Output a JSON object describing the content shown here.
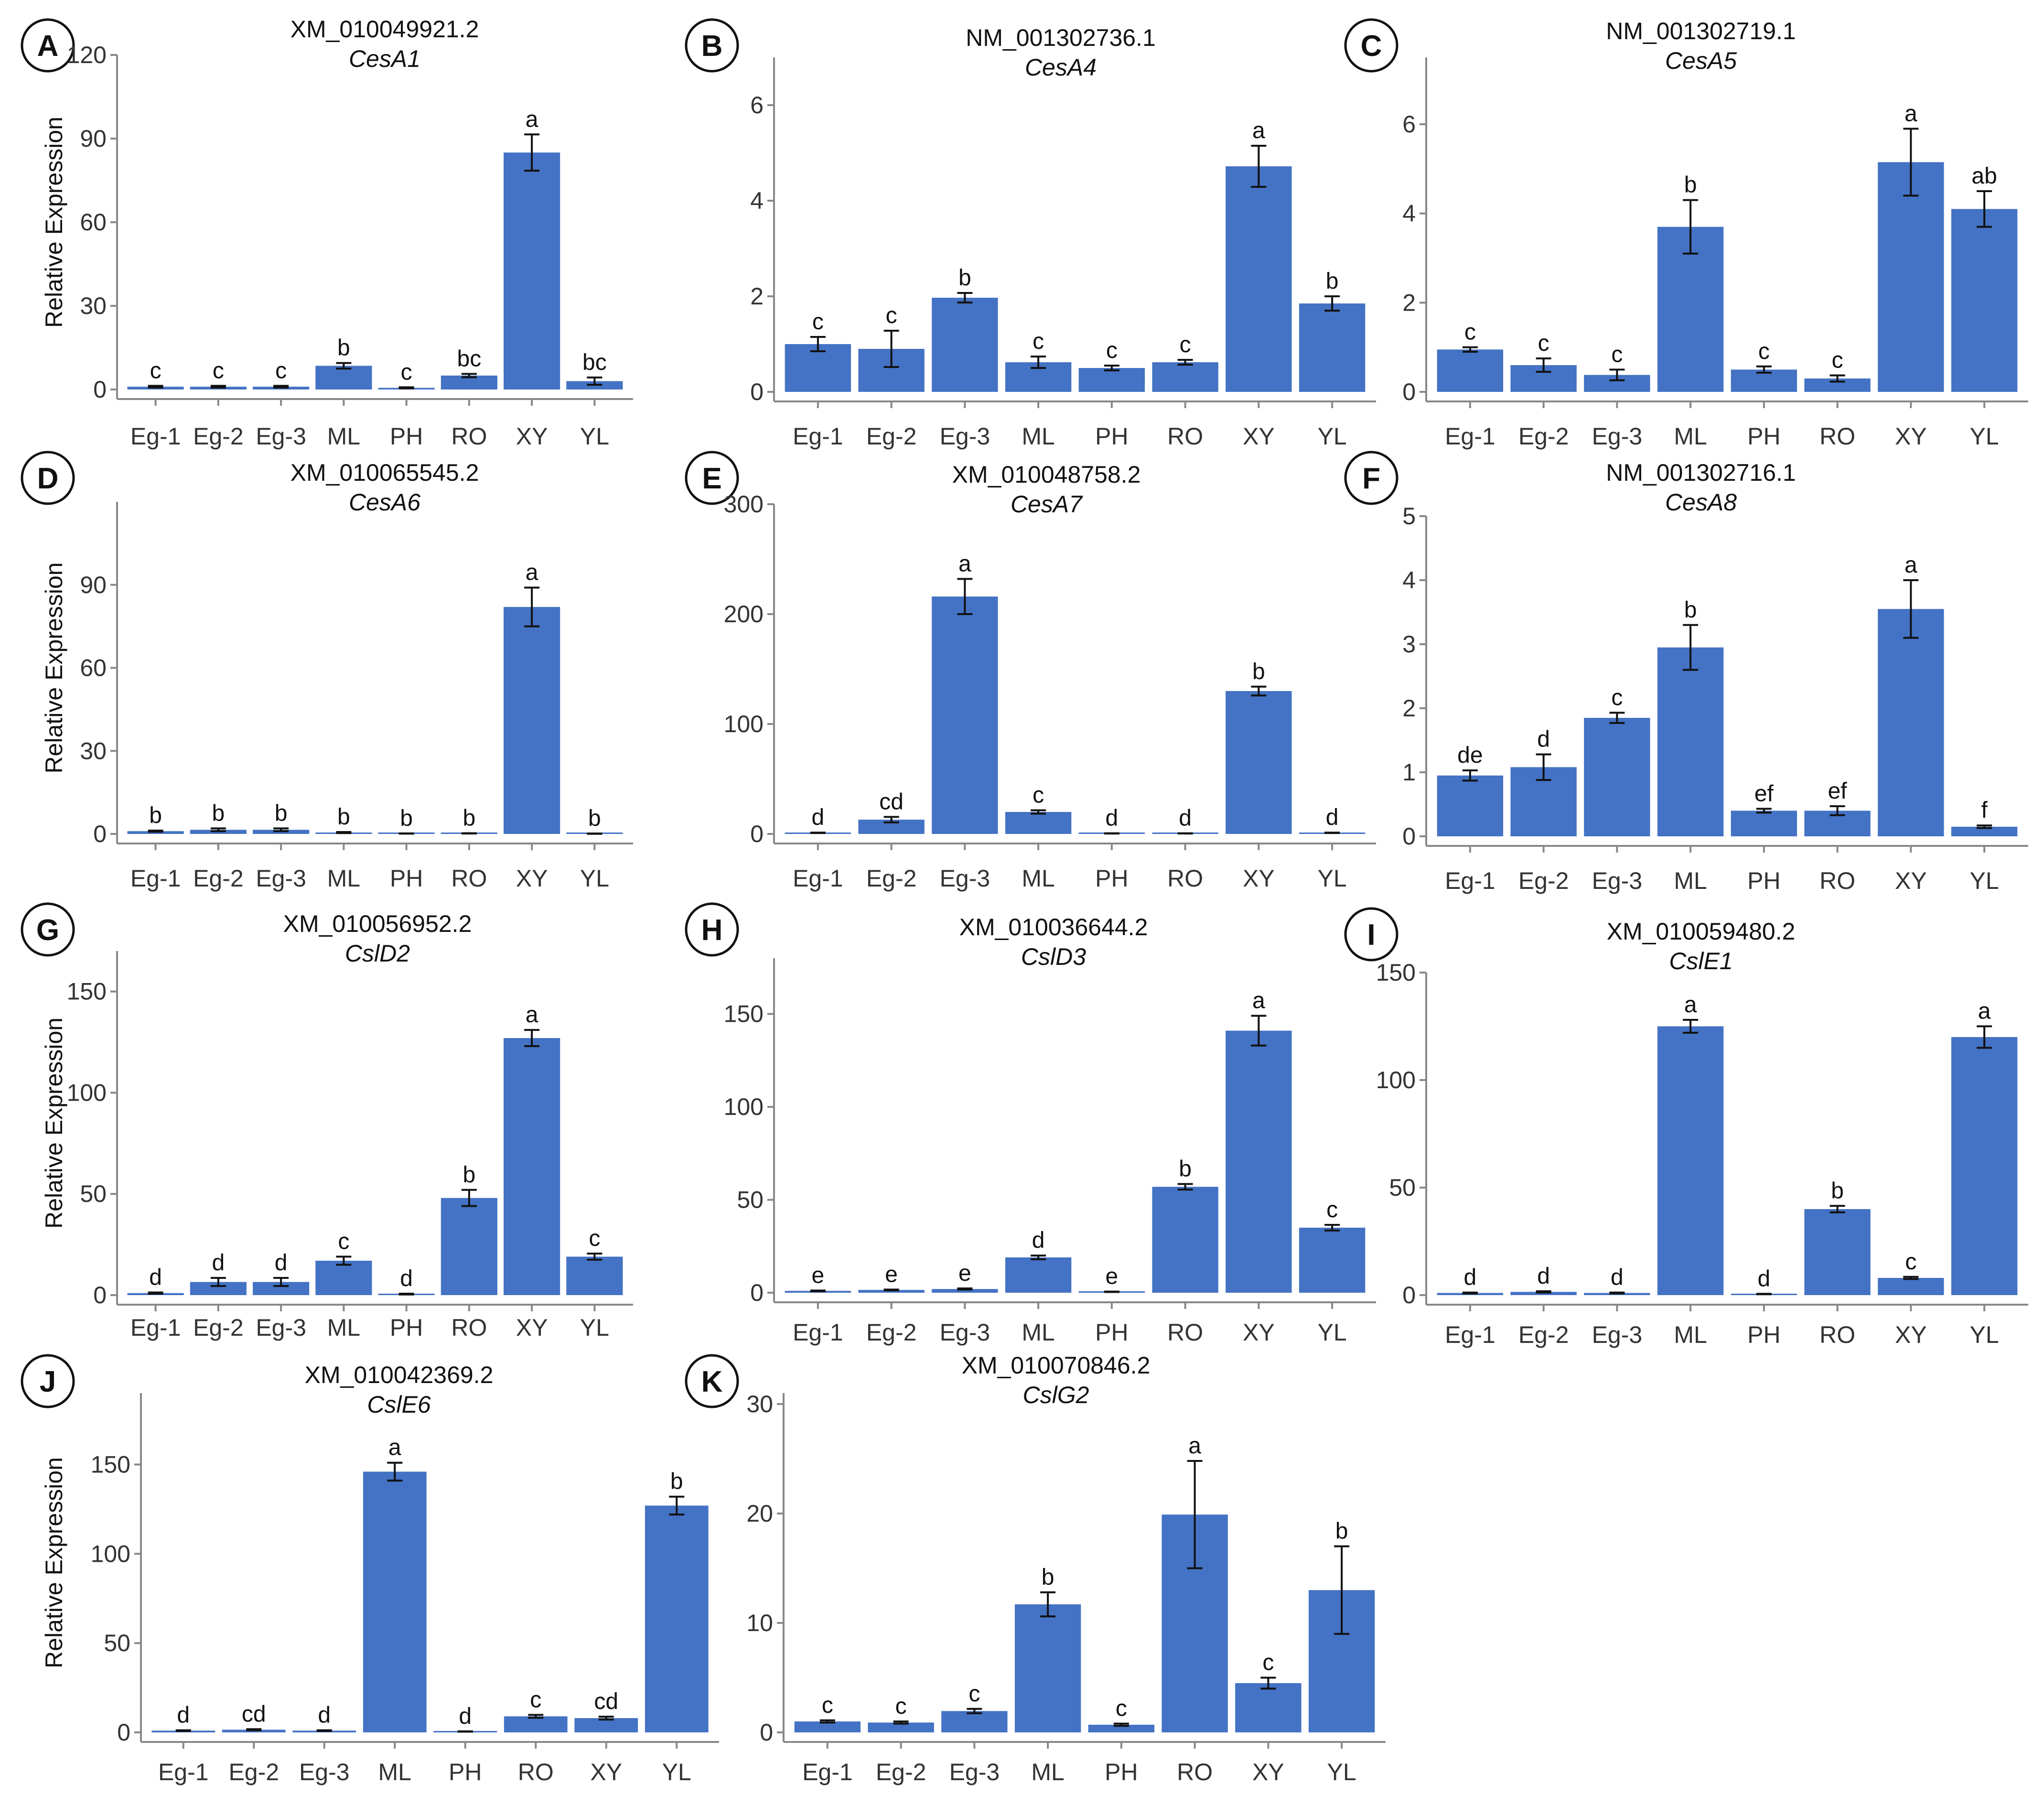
{
  "figure": {
    "bar_color": "#4472C4",
    "axis_color": "#888888",
    "text_color": "#111111"
  },
  "chart_data": [
    {
      "panel": "A",
      "type": "bar",
      "title": "XM_010049921.2",
      "subtitle": "CesA1",
      "ylabel": "Relative Expression",
      "ylim": [
        0,
        120
      ],
      "yticks": [
        0,
        30,
        60,
        90,
        120
      ],
      "categories": [
        "Eg-1",
        "Eg-2",
        "Eg-3",
        "ML",
        "PH",
        "RO",
        "XY",
        "YL"
      ],
      "values": [
        1.0,
        1.0,
        1.0,
        8.5,
        0.6,
        5.0,
        85.0,
        3.0
      ],
      "errors": [
        0.3,
        0.3,
        0.3,
        1.0,
        0.2,
        0.6,
        6.5,
        1.3
      ],
      "significance": [
        "c",
        "c",
        "c",
        "b",
        "c",
        "bc",
        "a",
        "bc"
      ]
    },
    {
      "panel": "B",
      "type": "bar",
      "title": "NM_001302736.1",
      "subtitle": "CesA4",
      "ylabel": "",
      "ylim": [
        0,
        7
      ],
      "yticks": [
        0,
        2,
        4,
        6
      ],
      "categories": [
        "Eg-1",
        "Eg-2",
        "Eg-3",
        "ML",
        "PH",
        "RO",
        "XY",
        "YL"
      ],
      "values": [
        1.0,
        0.9,
        1.97,
        0.62,
        0.5,
        0.62,
        4.72,
        1.85
      ],
      "errors": [
        0.15,
        0.38,
        0.1,
        0.12,
        0.05,
        0.05,
        0.43,
        0.15
      ],
      "significance": [
        "c",
        "c",
        "b",
        "c",
        "c",
        "c",
        "a",
        "b"
      ]
    },
    {
      "panel": "C",
      "type": "bar",
      "title": "NM_001302719.1",
      "subtitle": "CesA5",
      "ylabel": "",
      "ylim": [
        0,
        7.5
      ],
      "yticks": [
        0,
        2,
        4,
        6
      ],
      "categories": [
        "Eg-1",
        "Eg-2",
        "Eg-3",
        "ML",
        "PH",
        "RO",
        "XY",
        "YL"
      ],
      "values": [
        0.95,
        0.6,
        0.38,
        3.7,
        0.5,
        0.3,
        5.15,
        4.1
      ],
      "errors": [
        0.05,
        0.15,
        0.12,
        0.6,
        0.07,
        0.07,
        0.75,
        0.4
      ],
      "significance": [
        "c",
        "c",
        "c",
        "b",
        "c",
        "c",
        "a",
        "ab"
      ]
    },
    {
      "panel": "D",
      "type": "bar",
      "title": "XM_010065545.2",
      "subtitle": "CesA6",
      "ylabel": "Relative Expression",
      "ylim": [
        0,
        120
      ],
      "yticks": [
        0,
        30,
        60,
        90
      ],
      "categories": [
        "Eg-1",
        "Eg-2",
        "Eg-3",
        "ML",
        "PH",
        "RO",
        "XY",
        "YL"
      ],
      "values": [
        1.0,
        1.5,
        1.5,
        0.5,
        0.15,
        0.2,
        82.0,
        0.1
      ],
      "errors": [
        0.2,
        0.5,
        0.5,
        0.2,
        0.05,
        0.05,
        7.0,
        0.05
      ],
      "significance": [
        "b",
        "b",
        "b",
        "b",
        "b",
        "b",
        "a",
        "b"
      ]
    },
    {
      "panel": "E",
      "type": "bar",
      "title": "XM_010048758.2",
      "subtitle": "CesA7",
      "ylabel": "",
      "ylim": [
        0,
        300
      ],
      "yticks": [
        0,
        100,
        200,
        300
      ],
      "categories": [
        "Eg-1",
        "Eg-2",
        "Eg-3",
        "ML",
        "PH",
        "RO",
        "XY",
        "YL"
      ],
      "values": [
        1.0,
        13.0,
        216.0,
        20.0,
        0.5,
        0.5,
        130.0,
        1.0
      ],
      "errors": [
        0.2,
        2.5,
        16.0,
        1.5,
        0.1,
        0.1,
        4.0,
        0.2
      ],
      "significance": [
        "d",
        "cd",
        "a",
        "c",
        "d",
        "d",
        "b",
        "d"
      ]
    },
    {
      "panel": "F",
      "type": "bar",
      "title": "NM_001302716.1",
      "subtitle": "CesA8",
      "ylabel": "",
      "ylim": [
        0,
        5
      ],
      "yticks": [
        0,
        1,
        2,
        3,
        4,
        5
      ],
      "categories": [
        "Eg-1",
        "Eg-2",
        "Eg-3",
        "ML",
        "PH",
        "RO",
        "XY",
        "YL"
      ],
      "values": [
        0.95,
        1.08,
        1.85,
        2.95,
        0.4,
        0.4,
        3.55,
        0.15
      ],
      "errors": [
        0.08,
        0.2,
        0.08,
        0.35,
        0.03,
        0.07,
        0.45,
        0.02
      ],
      "significance": [
        "de",
        "d",
        "c",
        "b",
        "ef",
        "ef",
        "a",
        "f"
      ]
    },
    {
      "panel": "G",
      "type": "bar",
      "title": "XM_010056952.2",
      "subtitle": "CslD2",
      "ylabel": "Relative Expression",
      "ylim": [
        0,
        170
      ],
      "yticks": [
        0,
        50,
        100,
        150
      ],
      "categories": [
        "Eg-1",
        "Eg-2",
        "Eg-3",
        "ML",
        "PH",
        "RO",
        "XY",
        "YL"
      ],
      "values": [
        1.0,
        6.5,
        6.5,
        17.0,
        0.5,
        48.0,
        127.0,
        19.0
      ],
      "errors": [
        0.3,
        2.0,
        2.0,
        2.0,
        0.2,
        4.0,
        4.0,
        1.5
      ],
      "significance": [
        "d",
        "d",
        "d",
        "c",
        "d",
        "b",
        "a",
        "c"
      ]
    },
    {
      "panel": "H",
      "type": "bar",
      "title": "XM_010036644.2",
      "subtitle": "CslD3",
      "ylabel": "",
      "ylim": [
        0,
        180
      ],
      "yticks": [
        0,
        50,
        100,
        150
      ],
      "categories": [
        "Eg-1",
        "Eg-2",
        "Eg-3",
        "ML",
        "PH",
        "RO",
        "XY",
        "YL"
      ],
      "values": [
        1.0,
        1.5,
        2.0,
        19.0,
        0.5,
        57.0,
        141.0,
        35.0
      ],
      "errors": [
        0.2,
        0.2,
        0.3,
        1.0,
        0.1,
        1.5,
        8.0,
        1.5
      ],
      "significance": [
        "e",
        "e",
        "e",
        "d",
        "e",
        "b",
        "a",
        "c"
      ]
    },
    {
      "panel": "I",
      "type": "bar",
      "title": "XM_010059480.2",
      "subtitle": "CslE1",
      "ylabel": "",
      "ylim": [
        0,
        150
      ],
      "yticks": [
        0,
        50,
        100,
        150
      ],
      "categories": [
        "Eg-1",
        "Eg-2",
        "Eg-3",
        "ML",
        "PH",
        "RO",
        "XY",
        "YL"
      ],
      "values": [
        1.0,
        1.5,
        1.0,
        125.0,
        0.5,
        40.0,
        8.0,
        120.0
      ],
      "errors": [
        0.2,
        0.3,
        0.2,
        3.0,
        0.1,
        1.5,
        0.5,
        5.0
      ],
      "significance": [
        "d",
        "d",
        "d",
        "a",
        "d",
        "b",
        "c",
        "a"
      ]
    },
    {
      "panel": "J",
      "type": "bar",
      "title": "XM_010042369.2",
      "subtitle": "CslE6",
      "ylabel": "Relative Expression",
      "ylim": [
        0,
        190
      ],
      "yticks": [
        0,
        50,
        100,
        150
      ],
      "categories": [
        "Eg-1",
        "Eg-2",
        "Eg-3",
        "ML",
        "PH",
        "RO",
        "XY",
        "YL"
      ],
      "values": [
        1.0,
        1.5,
        1.0,
        146.0,
        0.5,
        9.0,
        8.0,
        127.0
      ],
      "errors": [
        0.2,
        0.3,
        0.2,
        5.0,
        0.1,
        0.8,
        0.8,
        5.0
      ],
      "significance": [
        "d",
        "cd",
        "d",
        "a",
        "d",
        "c",
        "cd",
        "b"
      ]
    },
    {
      "panel": "K",
      "type": "bar",
      "title": "XM_010070846.2",
      "subtitle": "CslG2",
      "ylabel": "",
      "ylim": [
        0,
        31
      ],
      "yticks": [
        0,
        10,
        20,
        30
      ],
      "categories": [
        "Eg-1",
        "Eg-2",
        "Eg-3",
        "ML",
        "PH",
        "RO",
        "XY",
        "YL"
      ],
      "values": [
        1.0,
        0.9,
        1.95,
        11.7,
        0.7,
        19.9,
        4.5,
        13.0
      ],
      "errors": [
        0.1,
        0.1,
        0.2,
        1.1,
        0.1,
        4.9,
        0.5,
        4.0
      ],
      "significance": [
        "c",
        "c",
        "c",
        "b",
        "c",
        "a",
        "c",
        "b"
      ]
    }
  ]
}
